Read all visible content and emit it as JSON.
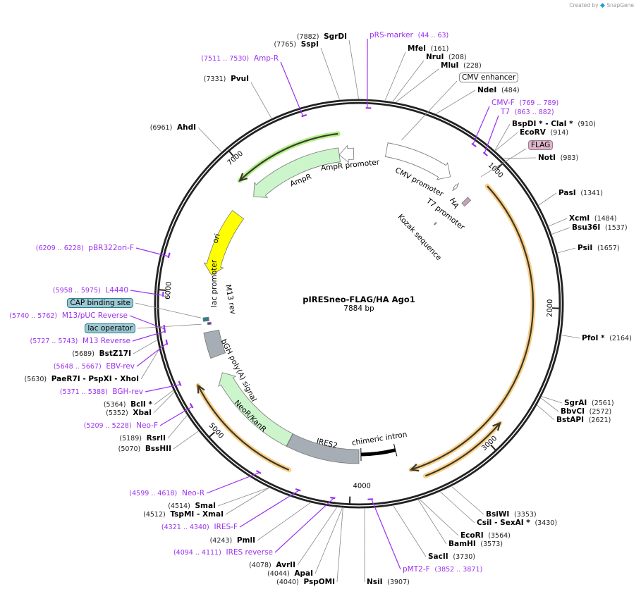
{
  "credit": {
    "prefix": "Created by",
    "brand": "SnapGene"
  },
  "map": {
    "title": "pIRESneo-FLAG/HA Ago1",
    "length_label": "7884 bp",
    "total_bp": 7884
  },
  "ticks": [
    {
      "bp": 1000,
      "label": "1000"
    },
    {
      "bp": 2000,
      "label": "2000"
    },
    {
      "bp": 3000,
      "label": "3000"
    },
    {
      "bp": 4000,
      "label": "4000"
    },
    {
      "bp": 5000,
      "label": "5000"
    },
    {
      "bp": 6000,
      "label": "6000"
    },
    {
      "bp": 7000,
      "label": "7000"
    }
  ],
  "sites": [
    {
      "id": "SgrDI",
      "name": "SgrDI",
      "pos": "(7882)",
      "bp": 7882
    },
    {
      "id": "SspI",
      "name": "SspI",
      "pos": "(7765)",
      "bp": 7765
    },
    {
      "id": "PvuI",
      "name": "PvuI",
      "pos": "(7331)",
      "bp": 7331
    },
    {
      "id": "AhdI",
      "name": "AhdI",
      "pos": "(6961)",
      "bp": 6961
    },
    {
      "id": "MfeI",
      "name": "MfeI",
      "pos": "(161)",
      "bp": 161
    },
    {
      "id": "NruI",
      "name": "NruI",
      "pos": "(208)",
      "bp": 208
    },
    {
      "id": "MluI",
      "name": "MluI",
      "pos": "(228)",
      "bp": 228
    },
    {
      "id": "NdeI",
      "name": "NdeI",
      "pos": "(484)",
      "bp": 484
    },
    {
      "id": "ClaI",
      "name": "BspDI * - ClaI *",
      "pos": "(910)",
      "bp": 910
    },
    {
      "id": "EcoRV",
      "name": "EcoRV",
      "pos": "(914)",
      "bp": 914
    },
    {
      "id": "NotI",
      "name": "NotI",
      "pos": "(983)",
      "bp": 983
    },
    {
      "id": "PasI",
      "name": "PasI",
      "pos": "(1341)",
      "bp": 1341
    },
    {
      "id": "XcmI",
      "name": "XcmI",
      "pos": "(1484)",
      "bp": 1484
    },
    {
      "id": "Bsu36I",
      "name": "Bsu36I",
      "pos": "(1537)",
      "bp": 1537
    },
    {
      "id": "PsiI",
      "name": "PsiI",
      "pos": "(1657)",
      "bp": 1657
    },
    {
      "id": "PfoI",
      "name": "PfoI *",
      "pos": "(2164)",
      "bp": 2164
    },
    {
      "id": "SgrAI",
      "name": "SgrAI",
      "pos": "(2561)",
      "bp": 2561
    },
    {
      "id": "BbvCI",
      "name": "BbvCI",
      "pos": "(2572)",
      "bp": 2572
    },
    {
      "id": "BstAPI",
      "name": "BstAPI",
      "pos": "(2621)",
      "bp": 2621
    },
    {
      "id": "BsiWI",
      "name": "BsiWI",
      "pos": "(3353)",
      "bp": 3353
    },
    {
      "id": "SexAI",
      "name": "CsiI  - SexAI *",
      "pos": "(3430)",
      "bp": 3430
    },
    {
      "id": "EcoRI",
      "name": "EcoRI",
      "pos": "(3564)",
      "bp": 3564
    },
    {
      "id": "BamHI",
      "name": "BamHI",
      "pos": "(3573)",
      "bp": 3573
    },
    {
      "id": "SacII",
      "name": "SacII",
      "pos": "(3730)",
      "bp": 3730
    },
    {
      "id": "NsiI",
      "name": "NsiI",
      "pos": "(3907)",
      "bp": 3907
    },
    {
      "id": "PspOMI",
      "name": "PspOMI",
      "pos": "(4040)",
      "bp": 4040
    },
    {
      "id": "ApaI",
      "name": "ApaI",
      "pos": "(4044)",
      "bp": 4044
    },
    {
      "id": "AvrII",
      "name": "AvrII",
      "pos": "(4078)",
      "bp": 4078
    },
    {
      "id": "PmlI",
      "name": "PmlI",
      "pos": "(4243)",
      "bp": 4243
    },
    {
      "id": "XmaI",
      "name": "TspMI   - XmaI",
      "pos": "(4512)",
      "bp": 4512
    },
    {
      "id": "SmaI",
      "name": "SmaI",
      "pos": "(4514)",
      "bp": 4514
    },
    {
      "id": "BssHII",
      "name": "BssHII",
      "pos": "(5070)",
      "bp": 5070
    },
    {
      "id": "RsrII",
      "name": "RsrII",
      "pos": "(5189)",
      "bp": 5189
    },
    {
      "id": "XbaI",
      "name": "XbaI",
      "pos": "(5352)",
      "bp": 5352
    },
    {
      "id": "BclI",
      "name": "BclI *",
      "pos": "(5364)",
      "bp": 5364
    },
    {
      "id": "XhoI",
      "name": "PaeR7I   - PspXI   - XhoI",
      "pos": "(5630)",
      "bp": 5630
    },
    {
      "id": "BstZ17I",
      "name": "BstZ17I",
      "pos": "(5689)",
      "bp": 5689
    }
  ],
  "primers": [
    {
      "id": "pRS",
      "name": "pRS-marker",
      "range": "(44 .. 63)",
      "start": 44,
      "end": 63
    },
    {
      "id": "AmpR",
      "name": "Amp-R",
      "range": "(7511 .. 7530)",
      "start": 7511,
      "end": 7530
    },
    {
      "id": "CMVF",
      "name": "CMV-F",
      "range": "(769 .. 789)",
      "start": 769,
      "end": 789
    },
    {
      "id": "T7",
      "name": "T7",
      "range": "(863 .. 882)",
      "start": 863,
      "end": 882
    },
    {
      "id": "pMT2F",
      "name": "pMT2-F",
      "range": "(3852 .. 3871)",
      "start": 3852,
      "end": 3871
    },
    {
      "id": "IRESrev",
      "name": "IRES reverse",
      "range": "(4094 .. 4111)",
      "start": 4094,
      "end": 4111
    },
    {
      "id": "IRESF",
      "name": "IRES-F",
      "range": "(4321 .. 4340)",
      "start": 4321,
      "end": 4340
    },
    {
      "id": "NeoR",
      "name": "Neo-R",
      "range": "(4599 .. 4618)",
      "start": 4599,
      "end": 4618
    },
    {
      "id": "NeoF",
      "name": "Neo-F",
      "range": "(5209 .. 5228)",
      "start": 5209,
      "end": 5228
    },
    {
      "id": "BGHrev",
      "name": "BGH-rev",
      "range": "(5371 .. 5388)",
      "start": 5371,
      "end": 5388
    },
    {
      "id": "EBVrev",
      "name": "EBV-rev",
      "range": "(5648 .. 5667)",
      "start": 5648,
      "end": 5667
    },
    {
      "id": "M13R",
      "name": "M13 Reverse",
      "range": "(5727 .. 5743)",
      "start": 5727,
      "end": 5743
    },
    {
      "id": "M13pUC",
      "name": "M13/pUC Reverse",
      "range": "(5740 .. 5762)",
      "start": 5740,
      "end": 5762
    },
    {
      "id": "L4440",
      "name": "L4440",
      "range": "(5958 .. 5975)",
      "start": 5958,
      "end": 5975
    },
    {
      "id": "pBR",
      "name": "pBR322ori-F",
      "range": "(6209 .. 6228)",
      "start": 6209,
      "end": 6228
    }
  ],
  "boxed_features": [
    {
      "id": "CMVenh",
      "name": "CMV enhancer",
      "bp": 320,
      "color": "#ffffff"
    },
    {
      "id": "FLAG",
      "name": "FLAG",
      "bp": 960,
      "color": "#dbb5c8"
    },
    {
      "id": "CAP",
      "name": "CAP binding site",
      "bp": 5800,
      "color": "#9dc8d2"
    },
    {
      "id": "lacop",
      "name": "lac operator",
      "bp": 5750,
      "color": "#9dc8d2"
    }
  ],
  "features": [
    {
      "id": "AmpR",
      "label": "AmpR",
      "start": 6909,
      "end": 7720,
      "dir": -1,
      "color": "#ccf5cc"
    },
    {
      "id": "AmpRprom",
      "label": "AmpR promoter",
      "start": 7720,
      "end": 7840,
      "dir": -1,
      "color": "#ffffff"
    },
    {
      "id": "ori",
      "label": "ori",
      "start": 6155,
      "end": 6710,
      "dir": -1,
      "color": "#ffff00"
    },
    {
      "id": "CMVprom",
      "label": "CMV promoter",
      "start": 223,
      "end": 783,
      "dir": 1,
      "color": "#ffffff"
    },
    {
      "id": "T7prom",
      "label": "T7 promoter",
      "start": 858,
      "end": 880,
      "dir": 1,
      "color": "#ffffff"
    },
    {
      "id": "HA",
      "label": "HA",
      "start": 1000,
      "end": 1035,
      "dir": 0,
      "color": "#c9a0b8"
    },
    {
      "id": "Kozak",
      "label": "Kozak sequence",
      "start": 950,
      "end": 960,
      "dir": 0,
      "color": "#aaaaaa"
    },
    {
      "id": "IRES2",
      "label": "IRES2",
      "start": 3942,
      "end": 4530,
      "dir": 0,
      "color": "#a7adb5"
    },
    {
      "id": "intron",
      "label": "chimeric intron",
      "start": 3636,
      "end": 3925,
      "dir": 0,
      "color": "#000000"
    },
    {
      "id": "NeoR",
      "label": "NeoR/KanR",
      "start": 4533,
      "end": 5326,
      "dir": 1,
      "color": "#ccf5cc"
    },
    {
      "id": "bGH",
      "label": "bGH poly(A) signal",
      "start": 5470,
      "end": 5680,
      "dir": 0,
      "color": "#a7adb5"
    },
    {
      "id": "lacprom",
      "label": "lac promoter",
      "start": 5770,
      "end": 5800,
      "dir": 0,
      "color": "#2b7f8e"
    },
    {
      "id": "M13rev",
      "label": "M13 rev",
      "start": 5740,
      "end": 5757,
      "dir": 0,
      "color": "#7b2cbf"
    }
  ],
  "orfs": [
    {
      "id": "orf-ampr",
      "start": 6920,
      "end": 7730,
      "dir": -1,
      "glow": "#b3ef88"
    },
    {
      "id": "orf-ago1",
      "start": 1040,
      "end": 3560,
      "dir": 1,
      "glow": "#fcd08a"
    },
    {
      "id": "orf-2",
      "start": 2853,
      "end": 3480,
      "dir": -1,
      "glow": "#fcd08a"
    },
    {
      "id": "orf-neo",
      "start": 4442,
      "end": 5322,
      "dir": 1,
      "glow": "#fcd08a"
    }
  ]
}
